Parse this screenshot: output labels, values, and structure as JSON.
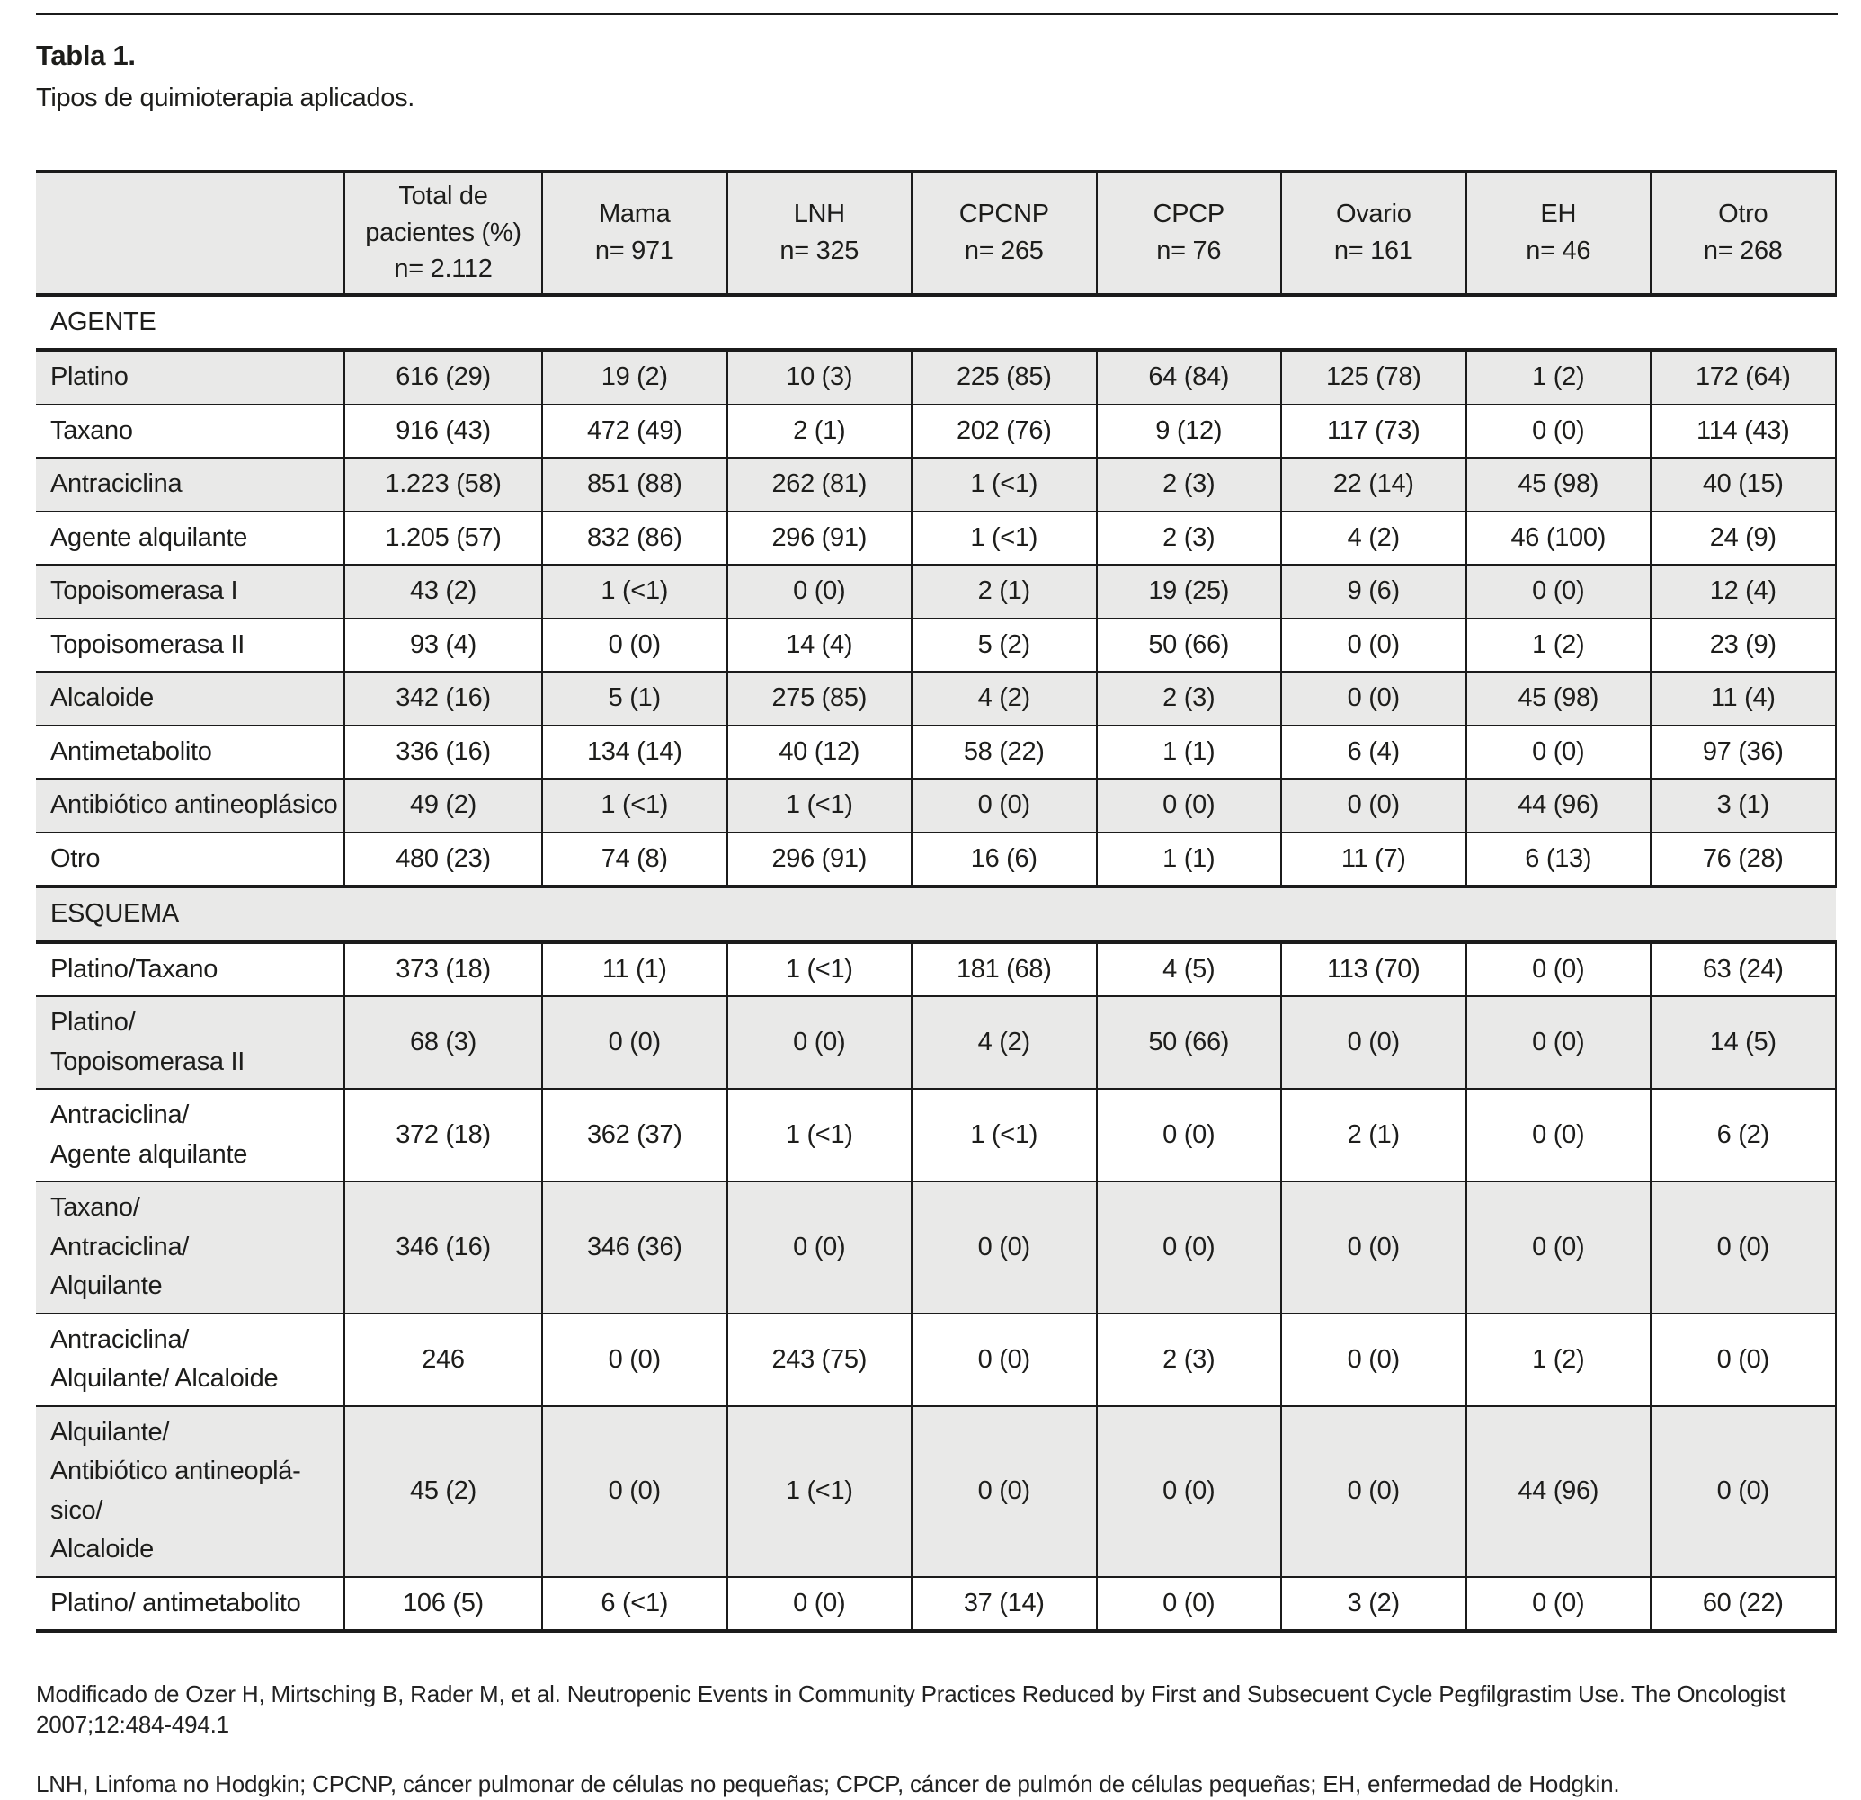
{
  "title": {
    "label": "Tabla 1.",
    "subtitle": "Tipos de quimioterapia aplicados."
  },
  "table": {
    "columns": [
      "",
      "Total de\npacientes (%)\nn= 2.112",
      "Mama\nn= 971",
      "LNH\nn= 325",
      "CPCNP\nn= 265",
      "CPCP\nn= 76",
      "Ovario\nn= 161",
      "EH\nn= 46",
      "Otro\nn= 268"
    ],
    "rows": [
      {
        "type": "section",
        "label": "AGENTE"
      },
      {
        "type": "data",
        "label": "Platino",
        "values": [
          "616 (29)",
          "19 (2)",
          "10 (3)",
          "225 (85)",
          "64 (84)",
          "125 (78)",
          "1 (2)",
          "172 (64)"
        ]
      },
      {
        "type": "data",
        "label": "Taxano",
        "values": [
          "916 (43)",
          "472 (49)",
          "2 (1)",
          "202 (76)",
          "9 (12)",
          "117 (73)",
          "0 (0)",
          "114 (43)"
        ]
      },
      {
        "type": "data",
        "label": "Antraciclina",
        "values": [
          "1.223 (58)",
          "851 (88)",
          "262 (81)",
          "1 (<1)",
          "2 (3)",
          "22 (14)",
          "45 (98)",
          "40 (15)"
        ]
      },
      {
        "type": "data",
        "label": "Agente alquilante",
        "values": [
          "1.205 (57)",
          "832 (86)",
          "296 (91)",
          "1 (<1)",
          "2 (3)",
          "4 (2)",
          "46 (100)",
          "24 (9)"
        ]
      },
      {
        "type": "data",
        "label": "Topoisomerasa I",
        "values": [
          "43 (2)",
          "1 (<1)",
          "0 (0)",
          "2 (1)",
          "19 (25)",
          "9 (6)",
          "0 (0)",
          "12 (4)"
        ]
      },
      {
        "type": "data",
        "label": "Topoisomerasa II",
        "values": [
          "93 (4)",
          "0 (0)",
          "14 (4)",
          "5 (2)",
          "50 (66)",
          "0 (0)",
          "1 (2)",
          "23 (9)"
        ]
      },
      {
        "type": "data",
        "label": "Alcaloide",
        "values": [
          "342 (16)",
          "5 (1)",
          "275 (85)",
          "4 (2)",
          "2 (3)",
          "0 (0)",
          "45 (98)",
          "11 (4)"
        ]
      },
      {
        "type": "data",
        "label": "Antimetabolito",
        "values": [
          "336 (16)",
          "134 (14)",
          "40 (12)",
          "58 (22)",
          "1 (1)",
          "6 (4)",
          "0 (0)",
          "97 (36)"
        ]
      },
      {
        "type": "data",
        "label": "Antibiótico antineoplásico",
        "values": [
          "49 (2)",
          "1 (<1)",
          "1 (<1)",
          "0 (0)",
          "0 (0)",
          "0 (0)",
          "44 (96)",
          "3 (1)"
        ]
      },
      {
        "type": "data",
        "label": "Otro",
        "values": [
          "480 (23)",
          "74 (8)",
          "296 (91)",
          "16 (6)",
          "1 (1)",
          "11 (7)",
          "6 (13)",
          "76 (28)"
        ]
      },
      {
        "type": "section",
        "label": "ESQUEMA"
      },
      {
        "type": "data",
        "label": "Platino/Taxano",
        "values": [
          "373 (18)",
          "11 (1)",
          "1 (<1)",
          "181 (68)",
          "4 (5)",
          "113 (70)",
          "0 (0)",
          "63 (24)"
        ]
      },
      {
        "type": "data",
        "label": "Platino/\nTopoisomerasa II",
        "values": [
          "68 (3)",
          "0 (0)",
          "0 (0)",
          "4 (2)",
          "50 (66)",
          "0 (0)",
          "0 (0)",
          "14 (5)"
        ]
      },
      {
        "type": "data",
        "label": "Antraciclina/\nAgente alquilante",
        "values": [
          "372 (18)",
          "362 (37)",
          "1 (<1)",
          "1 (<1)",
          "0 (0)",
          "2 (1)",
          "0 (0)",
          "6 (2)"
        ]
      },
      {
        "type": "data",
        "label": "Taxano/\nAntraciclina/\nAlquilante",
        "values": [
          "346 (16)",
          "346 (36)",
          "0 (0)",
          "0 (0)",
          "0 (0)",
          "0 (0)",
          "0 (0)",
          "0 (0)"
        ]
      },
      {
        "type": "data",
        "label": "Antraciclina/\nAlquilante/ Alcaloide",
        "values": [
          "246",
          "0 (0)",
          "243 (75)",
          "0 (0)",
          "2 (3)",
          "0 (0)",
          "1 (2)",
          "0 (0)"
        ]
      },
      {
        "type": "data",
        "label": "Alquilante/\nAntibiótico antineoplá-\nsico/\nAlcaloide",
        "values": [
          "45 (2)",
          "0 (0)",
          "1 (<1)",
          "0 (0)",
          "0 (0)",
          "0 (0)",
          "44 (96)",
          "0 (0)"
        ]
      },
      {
        "type": "data",
        "label": "Platino/ antimetabolito",
        "values": [
          "106 (5)",
          "6 (<1)",
          "0 (0)",
          "37 (14)",
          "0 (0)",
          "3 (2)",
          "0 (0)",
          "60 (22)"
        ]
      }
    ]
  },
  "footnotes": {
    "source": "Modificado de Ozer H, Mirtsching B, Rader M, et al. Neutropenic Events in Community Practices Reduced by First and Subsecuent Cycle Pegfilgrastim Use. The Oncologist 2007;12:484-494.1",
    "abbreviations": "LNH, Linfoma no Hodgkin; CPCNP, cáncer pulmonar de células no pequeñas; CPCP, cáncer de pulmón de células pequeñas; EH, enfermedad de Hodgkin."
  }
}
